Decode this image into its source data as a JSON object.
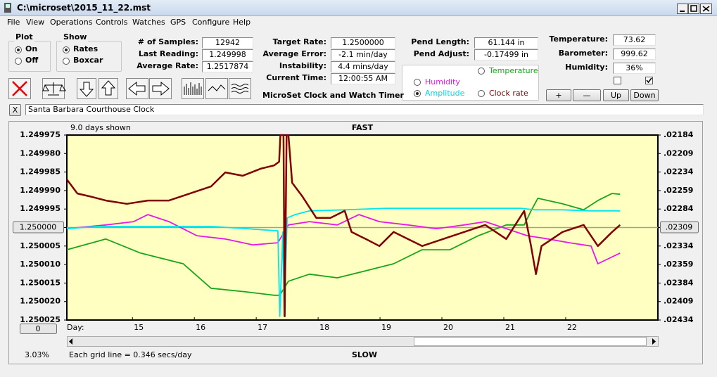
{
  "window": {
    "title": "C:\\microset\\2015_11_22.mst"
  },
  "menu": [
    "File",
    "View",
    "Operations",
    "Controls",
    "Watches",
    "GPS",
    "Configure",
    "Help"
  ],
  "plot_group": {
    "title": "Plot",
    "options": [
      "On",
      "Off"
    ],
    "selected": 0
  },
  "show_group": {
    "title": "Show",
    "options": [
      "Rates",
      "Boxcar"
    ],
    "selected": 0
  },
  "fields": [
    {
      "label": "# of Samples:",
      "value": "12942"
    },
    {
      "label": "Last Reading:",
      "value": "1.249998"
    },
    {
      "label": "Average Rate:",
      "value": "1.2517874"
    },
    {
      "label": "Target Rate:",
      "value": "1.2500000"
    },
    {
      "label": "Average Error:",
      "value": "-2.1 min/day"
    },
    {
      "label": "Instability:",
      "value": "4.4 mins/day"
    },
    {
      "label": "Current Time:",
      "value": "12:00:55 AM"
    },
    {
      "label": "Pend Length:",
      "value": "61.144 in"
    },
    {
      "label": "Pend Adjust:",
      "value": "-0.17499 in"
    },
    {
      "label": "Temperature:",
      "value": "73.62"
    },
    {
      "label": "Barometer:",
      "value": "999.62"
    },
    {
      "label": "Humidity:",
      "value": "36%"
    }
  ],
  "app_name": "MicroSet Clock and Watch Timer",
  "plot_select": {
    "options": [
      {
        "text": "Temperature",
        "color": "#19a519"
      },
      {
        "text": "Humidity",
        "color": "#e619e6"
      },
      {
        "text": "Amplitude",
        "color": "#00d8e6"
      },
      {
        "text": "Clock rate",
        "color": "#800000"
      }
    ],
    "selected": 2
  },
  "buttons": [
    "+",
    "—",
    "Up",
    "Down"
  ],
  "checkboxes": [
    false,
    true
  ],
  "clock_close": "X",
  "clock_name": "Santa Barbara Courthouse Clock",
  "chart_data": {
    "type": "line",
    "days_shown": "9.0 days shown",
    "top_label": "FAST",
    "bottom_label": "SLOW",
    "x_label": "Day:",
    "offset_button": "0",
    "xlim": [
      13.94,
      23.49
    ],
    "xticks": [
      15,
      16,
      17,
      18,
      19,
      20,
      21,
      22
    ],
    "ylim": [
      1.250025,
      1.249975
    ],
    "yticks": [
      1.249975,
      {
        "value": 1.24998,
        "label": "1.249980"
      },
      1.249985,
      {
        "value": 1.24999,
        "label": "1.249990"
      },
      1.249995,
      {
        "value": 1.25,
        "label": "1.250000"
      },
      1.250005,
      {
        "value": 1.25001,
        "label": "1.250010"
      },
      1.250015,
      {
        "value": 1.25002,
        "label": "1.250020"
      },
      1.250025
    ],
    "y2lim": [
      0.02434,
      0.02184
    ],
    "y2ticks": [
      {
        "value": 0.02184,
        "label": ".02184"
      },
      {
        "value": 0.02209,
        "label": ".02209"
      },
      {
        "value": 0.02234,
        "label": ".02234"
      },
      {
        "value": 0.02259,
        "label": ".02259"
      },
      {
        "value": 0.02284,
        "label": ".02284"
      },
      {
        "value": 0.02309,
        "label": ".02309"
      },
      {
        "value": 0.02334,
        "label": ".02334"
      },
      {
        "value": 0.02359,
        "label": ".02359"
      },
      {
        "value": 0.02384,
        "label": ".02384"
      },
      {
        "value": 0.02409,
        "label": ".02409"
      },
      {
        "value": 0.02434,
        "label": ".02434"
      }
    ],
    "series": [
      {
        "color": "#19a519",
        "x": [
          13.94,
          14.57,
          15.13,
          15.82,
          16.27,
          16.84,
          17.29,
          17.38,
          17.52,
          17.86,
          18.31,
          18.77,
          19.22,
          19.68,
          20.13,
          20.59,
          21.04,
          21.33,
          21.44,
          21.55,
          21.95,
          22.29,
          22.52,
          22.75,
          22.88
        ],
        "values": [
          1.250006,
          1.2500031,
          1.2500069,
          1.2500098,
          1.2500164,
          1.2500174,
          1.2500183,
          1.2500183,
          1.2500145,
          1.2500126,
          1.2500136,
          1.2500117,
          1.2500098,
          1.250006,
          1.250006,
          1.2500022,
          1.2499993,
          1.2499993,
          1.2499955,
          1.2499921,
          1.2499936,
          1.2499952,
          1.2499927,
          1.2499908,
          1.249991
        ]
      },
      {
        "color": "#e619e6",
        "x": [
          13.94,
          14.57,
          15.02,
          15.25,
          15.59,
          16.04,
          16.5,
          16.95,
          17.35,
          17.52,
          17.86,
          18.31,
          18.66,
          18.99,
          19.45,
          19.91,
          20.36,
          20.7,
          21.04,
          21.38,
          21.72,
          22.06,
          22.41,
          22.52,
          22.88
        ],
        "values": [
          1.2500003,
          1.2499993,
          1.2499984,
          1.2499965,
          1.2499984,
          1.2500022,
          1.2500031,
          1.2500047,
          1.2500041,
          1.2499993,
          1.2499984,
          1.2499993,
          1.2499965,
          1.2499984,
          1.2499993,
          1.2500003,
          1.2499993,
          1.2499984,
          1.2500003,
          1.2500022,
          1.2500031,
          1.2500041,
          1.250005,
          1.2500098,
          1.2500069
        ]
      },
      {
        "color": "#00e5ee",
        "x": [
          13.94,
          14.45,
          15.13,
          15.82,
          16.27,
          16.84,
          17.35,
          17.38,
          17.43,
          17.45,
          17.5,
          17.63,
          17.86,
          18.43,
          19.11,
          20.25,
          21.27,
          21.5,
          21.95,
          22.41,
          22.88
        ],
        "values": [
          1.2500003,
          1.2499997,
          1.2499997,
          1.2499997,
          1.2499997,
          1.2500003,
          1.2500009,
          1.250024,
          1.2500012,
          1.250024,
          1.2499974,
          1.2499965,
          1.2499955,
          1.2499952,
          1.2499948,
          1.2499948,
          1.2499948,
          1.2499952,
          1.2499952,
          1.2499955,
          1.2499955
        ]
      },
      {
        "color": "#800000",
        "x": [
          13.94,
          14.11,
          14.34,
          14.57,
          14.91,
          15.25,
          15.59,
          15.93,
          16.27,
          16.5,
          16.78,
          17.07,
          17.29,
          17.37,
          17.39,
          17.44,
          17.46,
          17.49,
          17.52,
          17.58,
          17.75,
          17.97,
          18.2,
          18.43,
          18.54,
          18.77,
          18.99,
          19.22,
          19.45,
          19.68,
          20.02,
          20.36,
          20.7,
          21.04,
          21.33,
          21.44,
          21.52,
          21.61,
          21.95,
          22.29,
          22.52,
          22.75,
          22.88
        ],
        "values": [
          1.249987,
          1.2499908,
          1.2499917,
          1.2499927,
          1.2499936,
          1.2499927,
          1.2499927,
          1.2499908,
          1.2499889,
          1.2499851,
          1.249986,
          1.2499841,
          1.2499832,
          1.2499822,
          1.249975,
          1.249975,
          1.250024,
          1.249975,
          1.249975,
          1.2499879,
          1.2499917,
          1.2499974,
          1.2499974,
          1.2499955,
          1.2500012,
          1.2500031,
          1.250005,
          1.2500012,
          1.2500031,
          1.250005,
          1.2500031,
          1.2500012,
          1.2499993,
          1.2500031,
          1.2499955,
          1.250005,
          1.2500126,
          1.250005,
          1.2500012,
          1.2499993,
          1.250005,
          1.2500012,
          1.2499993
        ]
      }
    ]
  },
  "status": {
    "percent": "3.03%",
    "grid_note": "Each grid line = 0.346 secs/day"
  }
}
